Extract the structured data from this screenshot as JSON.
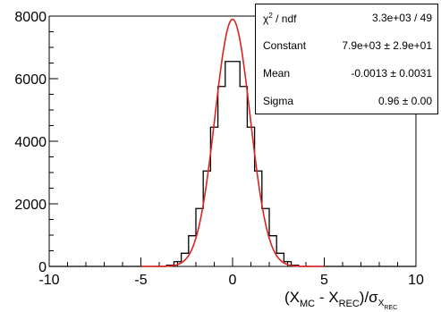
{
  "chart_data": {
    "type": "histogram",
    "xlim": [
      -10,
      10
    ],
    "ylim": [
      0,
      8000
    ],
    "x_ticks": [
      "-10",
      "-5",
      "0",
      "5",
      "10"
    ],
    "y_ticks": [
      "0",
      "2000",
      "4000",
      "6000",
      "8000"
    ],
    "bin_width": 0.4,
    "histogram": {
      "bin_centers": [
        -3.4,
        -3.0,
        -2.6,
        -2.2,
        -1.8,
        -1.4,
        -1.0,
        -0.6,
        -0.2,
        0.2,
        0.6,
        1.0,
        1.4,
        1.8,
        2.2,
        2.6,
        3.0,
        3.4
      ],
      "values": [
        40,
        150,
        420,
        980,
        1850,
        3050,
        4450,
        5750,
        6550,
        6550,
        5750,
        4450,
        3050,
        1850,
        980,
        420,
        150,
        40
      ],
      "color": "#000000"
    },
    "fit": {
      "function": "gaussian",
      "constant": 7900,
      "mean": -0.0013,
      "sigma": 0.96,
      "color": "#dd2222"
    },
    "stats": {
      "chi2_label": "χ",
      "chi2_sup": "2",
      "chi2_suffix": " / ndf",
      "chi2_value": "3.3e+03 / 49",
      "constant_label": "Constant",
      "constant_value": "7.9e+03 ± 2.9e+01",
      "mean_label": "Mean",
      "mean_value": "-0.0013 ± 0.0031",
      "sigma_label": "Sigma",
      "sigma_value": "0.96 ± 0.00"
    },
    "xlabel": {
      "open": "(X",
      "sub1": "MC",
      "mid": " - X",
      "sub2": "REC",
      "close": ")/σ",
      "sub3": "X",
      "sub4": "REC"
    }
  }
}
